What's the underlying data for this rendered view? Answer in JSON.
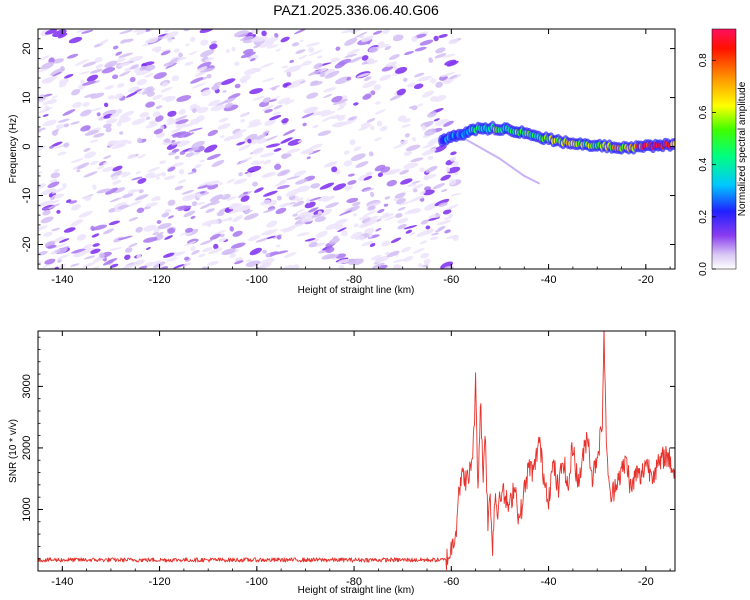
{
  "title": "PAZ1.2025.336.06.40.G06",
  "chart_data": [
    {
      "type": "heatmap",
      "title": "PAZ1.2025.336.06.40.G06",
      "xlabel": "Height of straight line (km)",
      "ylabel": "Frequency (Hz)",
      "xlim": [
        -145,
        -14
      ],
      "ylim": [
        -25,
        24
      ],
      "x_ticks": [
        -140,
        -120,
        -100,
        -80,
        -60,
        -40,
        -20
      ],
      "y_ticks": [
        -20,
        -10,
        0,
        10,
        20
      ],
      "noise_region_x": [
        -145,
        -60
      ],
      "signal_track": {
        "x": [
          -62,
          -58,
          -55,
          -52,
          -48,
          -44,
          -40,
          -36,
          -32,
          -28,
          -24,
          -20,
          -16,
          -14
        ],
        "freq_hz": [
          1.0,
          2.5,
          3.5,
          3.8,
          3.5,
          2.5,
          1.5,
          0.8,
          0.3,
          0.0,
          -0.2,
          0.0,
          0.3,
          0.5
        ],
        "amplitude": [
          0.25,
          0.35,
          0.4,
          0.45,
          0.5,
          0.45,
          0.55,
          0.6,
          0.5,
          0.65,
          0.6,
          0.9,
          0.85,
          0.7
        ]
      },
      "secondary_track": {
        "x": [
          -58,
          -50,
          -45,
          -42
        ],
        "freq_hz": [
          2.0,
          -2.5,
          -6.0,
          -7.5
        ]
      },
      "colorbar": {
        "label": "Normalized spectral amplitude",
        "range": [
          0,
          0.92
        ],
        "ticks": [
          "0.0",
          "0.2",
          "0.4",
          "0.6",
          "0.8"
        ],
        "tick_values": [
          0.0,
          0.2,
          0.4,
          0.6,
          0.8
        ]
      }
    },
    {
      "type": "line",
      "xlabel": "Height of straight line (km)",
      "ylabel": "SNR (10 * v/v)",
      "xlim": [
        -145,
        -14
      ],
      "ylim": [
        0,
        3900
      ],
      "x_ticks": [
        -140,
        -120,
        -100,
        -80,
        -60,
        -40,
        -20
      ],
      "y_ticks": [
        1000,
        2000,
        3000
      ],
      "color": "#e8302a",
      "series": [
        {
          "name": "SNR",
          "x": [
            -145,
            -61,
            -60,
            -59,
            -58.5,
            -57.5,
            -56.5,
            -55.5,
            -55,
            -54.5,
            -54,
            -53.5,
            -53,
            -52.5,
            -52,
            -51.5,
            -51,
            -50.5,
            -50,
            -49,
            -48,
            -47,
            -46,
            -45,
            -44,
            -43,
            -42,
            -41,
            -40,
            -39,
            -38,
            -37,
            -36,
            -35,
            -34,
            -33,
            -32,
            -31,
            -30,
            -29,
            -28.6,
            -28.3,
            -27.6,
            -27,
            -26,
            -25,
            -24,
            -23,
            -22,
            -21,
            -20,
            -19,
            -18,
            -17,
            -16,
            -15,
            -14
          ],
          "y": [
            180,
            180,
            350,
            700,
            1350,
            1550,
            1450,
            2000,
            3050,
            1300,
            2850,
            1500,
            2300,
            800,
            1200,
            400,
            1300,
            900,
            1350,
            1200,
            1000,
            1450,
            800,
            1300,
            1700,
            1600,
            2150,
            1550,
            1200,
            1750,
            1300,
            1850,
            1300,
            2100,
            1400,
            1800,
            2250,
            1500,
            1900,
            2300,
            3900,
            2600,
            1300,
            1200,
            1500,
            1600,
            1800,
            1300,
            1600,
            1500,
            1800,
            1600,
            1650,
            1750,
            1900,
            1800,
            1550
          ]
        }
      ]
    }
  ]
}
